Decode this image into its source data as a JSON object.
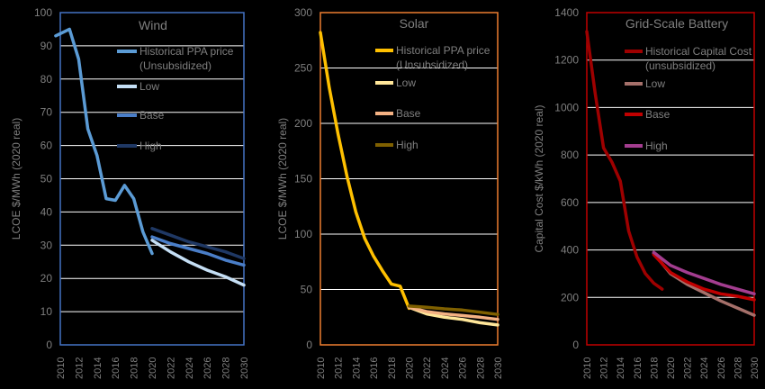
{
  "chart_data": [
    {
      "type": "line",
      "title": "Wind",
      "ylabel": "LCOE $/MWh (2020 real)",
      "xlabel": "",
      "ylim": [
        0,
        100
      ],
      "yticks": [
        0,
        10,
        20,
        30,
        40,
        50,
        60,
        70,
        80,
        90,
        100
      ],
      "xlim": [
        2010,
        2030
      ],
      "xticks": [
        2010,
        2012,
        2014,
        2016,
        2018,
        2020,
        2022,
        2024,
        2026,
        2028,
        2030
      ],
      "grid": true,
      "legend": "top-right",
      "frame_color": "#4472c4",
      "series": [
        {
          "name": "Historical PPA price (Unsubsidized)",
          "color": "#5b9bd5",
          "x": [
            2009.5,
            2011,
            2012,
            2013,
            2014,
            2015,
            2016,
            2017,
            2018,
            2019,
            2020
          ],
          "y": [
            93,
            95,
            86,
            65,
            57,
            44,
            43.5,
            48,
            44,
            34,
            27.5
          ]
        },
        {
          "name": "Low",
          "color": "#c5dff5",
          "x": [
            2020,
            2022,
            2024,
            2026,
            2028,
            2030
          ],
          "y": [
            31.5,
            28,
            25,
            22.5,
            20.5,
            18
          ]
        },
        {
          "name": "Base",
          "color": "#4a7ec8",
          "x": [
            2020,
            2022,
            2024,
            2026,
            2028,
            2030
          ],
          "y": [
            32.5,
            30.5,
            29,
            27.5,
            25.5,
            24
          ]
        },
        {
          "name": "High",
          "color": "#1f3864",
          "x": [
            2020,
            2022,
            2024,
            2026,
            2028,
            2030
          ],
          "y": [
            35,
            33,
            31,
            29.5,
            28,
            26
          ]
        }
      ]
    },
    {
      "type": "line",
      "title": "Solar",
      "ylabel": "LCOE $/MWh (2020 real)",
      "xlabel": "",
      "ylim": [
        0,
        300
      ],
      "yticks": [
        0,
        50,
        100,
        150,
        200,
        250,
        300
      ],
      "xlim": [
        2010,
        2030
      ],
      "xticks": [
        2010,
        2012,
        2014,
        2016,
        2018,
        2020,
        2022,
        2024,
        2026,
        2028,
        2030
      ],
      "grid": true,
      "legend": "top-right",
      "frame_color": "#ed7d31",
      "series": [
        {
          "name": "Historical PPA price (Unsubsidized)",
          "color": "#ffc000",
          "x": [
            2010,
            2011,
            2012,
            2013,
            2014,
            2015,
            2016,
            2017,
            2018,
            2019,
            2020
          ],
          "y": [
            282,
            232,
            190,
            152,
            120,
            96,
            80,
            67,
            55,
            53,
            33
          ]
        },
        {
          "name": "Low",
          "color": "#ffe699",
          "x": [
            2020,
            2022,
            2024,
            2026,
            2028,
            2030
          ],
          "y": [
            34,
            28,
            25,
            23,
            20,
            18
          ]
        },
        {
          "name": "Base",
          "color": "#f4b183",
          "x": [
            2020,
            2022,
            2024,
            2026,
            2028,
            2030
          ],
          "y": [
            34,
            30,
            28,
            26.5,
            25,
            23
          ]
        },
        {
          "name": "High",
          "color": "#7f6000",
          "x": [
            2020,
            2022,
            2024,
            2026,
            2028,
            2030
          ],
          "y": [
            35,
            34,
            32.5,
            31.5,
            29.5,
            27.5
          ]
        }
      ]
    },
    {
      "type": "line",
      "title": "Grid-Scale Battery",
      "ylabel": "Capital Cost $/kWh (2020 real)",
      "xlabel": "",
      "ylim": [
        0,
        1400
      ],
      "yticks": [
        0,
        200,
        400,
        600,
        800,
        1000,
        1200,
        1400
      ],
      "xlim": [
        2010,
        2030
      ],
      "xticks": [
        2010,
        2012,
        2014,
        2016,
        2018,
        2020,
        2022,
        2024,
        2026,
        2028,
        2030
      ],
      "grid": true,
      "legend": "top-right",
      "frame_color": "#c00000",
      "series": [
        {
          "name": "Historical Capital Cost (unsubsidized)",
          "color": "#9e0000",
          "x": [
            2010,
            2011,
            2012,
            2013,
            2014,
            2015,
            2016,
            2017,
            2018,
            2019
          ],
          "y": [
            1320,
            1060,
            830,
            770,
            690,
            480,
            370,
            300,
            260,
            235
          ]
        },
        {
          "name": "Low",
          "color": "#a5706a",
          "x": [
            2018,
            2020,
            2022,
            2024,
            2026,
            2028,
            2030
          ],
          "y": [
            385,
            300,
            255,
            220,
            185,
            155,
            125
          ]
        },
        {
          "name": "Base",
          "color": "#c00000",
          "x": [
            2018,
            2020,
            2022,
            2024,
            2026,
            2028,
            2030
          ],
          "y": [
            380,
            305,
            265,
            235,
            215,
            205,
            190
          ]
        },
        {
          "name": "High",
          "color": "#a33d8f",
          "x": [
            2018,
            2020,
            2022,
            2024,
            2026,
            2028,
            2030
          ],
          "y": [
            390,
            335,
            305,
            280,
            255,
            235,
            215
          ]
        }
      ]
    }
  ]
}
